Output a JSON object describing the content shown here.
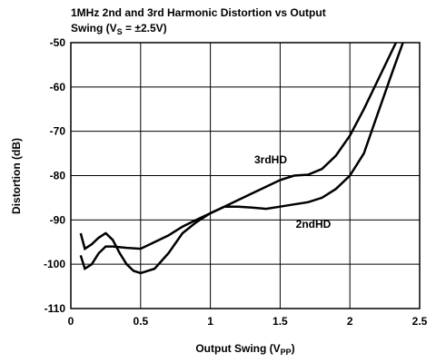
{
  "chart_data": {
    "type": "line",
    "title": [
      "1MHz 2nd and 3rd Harmonic Distortion vs Output",
      "Swing (V",
      "S",
      " = ±2.5V)"
    ],
    "xlabel": [
      "Output Swing (V",
      "PP",
      ")"
    ],
    "ylabel": "Distortion (dB)",
    "xlim": [
      0,
      2.5
    ],
    "xticks": [
      0,
      0.5,
      1,
      1.5,
      2,
      2.5
    ],
    "ylim": [
      -110,
      -50
    ],
    "yticks": [
      -50,
      -60,
      -70,
      -80,
      -90,
      -100,
      -110
    ],
    "grid": true,
    "series": [
      {
        "name": "2ndHD",
        "color": "#000000",
        "x": [
          0.07,
          0.1,
          0.15,
          0.2,
          0.25,
          0.3,
          0.35,
          0.4,
          0.45,
          0.5,
          0.6,
          0.7,
          0.8,
          0.9,
          1.0,
          1.1,
          1.2,
          1.3,
          1.4,
          1.5,
          1.6,
          1.7,
          1.8,
          1.9,
          2.0,
          2.1,
          2.2,
          2.3,
          2.38
        ],
        "values": [
          -93,
          -96.5,
          -95.5,
          -94,
          -93,
          -94.5,
          -97.5,
          -100,
          -101.5,
          -102,
          -101,
          -97.5,
          -93,
          -90.5,
          -88.5,
          -87,
          -87,
          -87.2,
          -87.5,
          -87,
          -86.5,
          -86,
          -85,
          -83,
          -80,
          -75,
          -66,
          -57,
          -50
        ]
      },
      {
        "name": "3rdHD",
        "color": "#000000",
        "x": [
          0.07,
          0.1,
          0.15,
          0.2,
          0.25,
          0.3,
          0.4,
          0.5,
          0.6,
          0.7,
          0.8,
          0.9,
          1.0,
          1.1,
          1.2,
          1.3,
          1.4,
          1.5,
          1.6,
          1.7,
          1.8,
          1.9,
          2.0,
          2.1,
          2.2,
          2.33
        ],
        "values": [
          -98,
          -101,
          -100,
          -97.5,
          -96,
          -96,
          -96.3,
          -96.5,
          -95,
          -93.5,
          -91.5,
          -90,
          -88.5,
          -87,
          -85.5,
          -84,
          -82.5,
          -81,
          -80,
          -79.8,
          -78.5,
          -75.5,
          -71,
          -65,
          -58.5,
          -50
        ]
      }
    ]
  }
}
